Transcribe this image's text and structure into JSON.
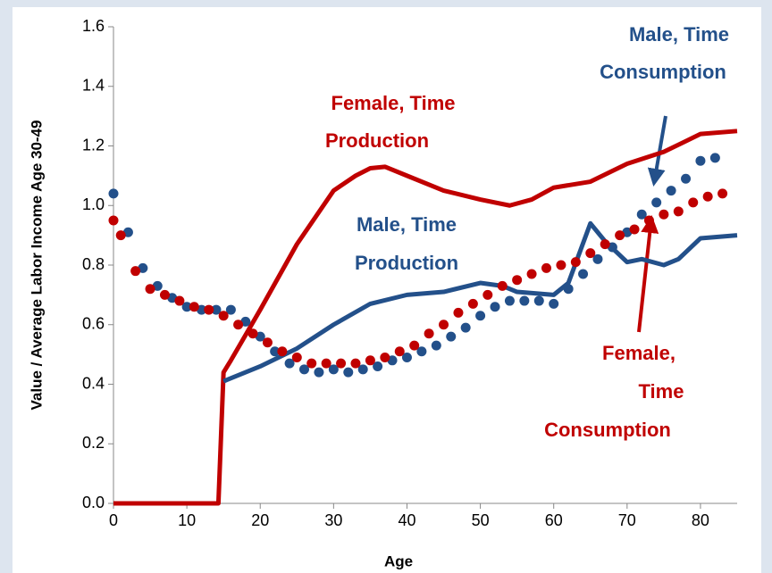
{
  "chart_data": {
    "type": "line",
    "xlabel": "Age",
    "ylabel": "Value / Average Labor Income Age 30-49",
    "xlim": [
      0,
      85
    ],
    "xticks": [
      0,
      10,
      20,
      30,
      40,
      50,
      60,
      70,
      80
    ],
    "ylim": [
      0,
      1.6
    ],
    "yticks": [
      {
        "value": 0,
        "label": "0.0"
      },
      0.2,
      0.4,
      0.6,
      0.8,
      {
        "value": 1,
        "label": "1.0"
      },
      1.2,
      1.4,
      1.6
    ],
    "series": [
      {
        "style": "line",
        "color": "#c00000",
        "x": [
          0,
          14.3,
          15,
          16,
          20,
          25,
          30,
          33,
          35,
          37,
          40,
          45,
          50,
          54,
          57,
          60,
          65,
          70,
          75,
          80,
          85
        ],
        "values": [
          0,
          0,
          0.44,
          0.48,
          0.65,
          0.87,
          1.05,
          1.1,
          1.125,
          1.13,
          1.1,
          1.05,
          1.02,
          1.0,
          1.02,
          1.06,
          1.08,
          1.14,
          1.18,
          1.24,
          1.25
        ]
      },
      {
        "style": "line",
        "color": "#23508a",
        "x": [
          15,
          20,
          25,
          30,
          35,
          40,
          45,
          50,
          53,
          55,
          60,
          62,
          65,
          67,
          70,
          72,
          75,
          77,
          80,
          85
        ],
        "values": [
          0.41,
          0.46,
          0.52,
          0.6,
          0.67,
          0.7,
          0.71,
          0.74,
          0.73,
          0.71,
          0.7,
          0.74,
          0.94,
          0.88,
          0.81,
          0.82,
          0.8,
          0.82,
          0.89,
          0.9
        ]
      },
      {
        "style": "dots",
        "color": "#23508a",
        "x": [
          0,
          2,
          4,
          6,
          8,
          10,
          12,
          14,
          16,
          18,
          20,
          22,
          24,
          26,
          28,
          30,
          32,
          34,
          36,
          38,
          40,
          42,
          44,
          46,
          48,
          50,
          52,
          54,
          56,
          58,
          60,
          62,
          64,
          66,
          68,
          70,
          72,
          74,
          76,
          78,
          80,
          82
        ],
        "values": [
          1.04,
          0.91,
          0.79,
          0.73,
          0.69,
          0.66,
          0.65,
          0.65,
          0.65,
          0.61,
          0.56,
          0.51,
          0.47,
          0.45,
          0.44,
          0.45,
          0.44,
          0.45,
          0.46,
          0.48,
          0.49,
          0.51,
          0.53,
          0.56,
          0.59,
          0.63,
          0.66,
          0.68,
          0.68,
          0.68,
          0.67,
          0.72,
          0.77,
          0.82,
          0.86,
          0.91,
          0.97,
          1.01,
          1.05,
          1.09,
          1.15,
          1.16
        ]
      },
      {
        "style": "dots",
        "color": "#c00000",
        "x": [
          0,
          1,
          3,
          5,
          7,
          9,
          11,
          13,
          15,
          17,
          19,
          21,
          23,
          25,
          27,
          29,
          31,
          33,
          35,
          37,
          39,
          41,
          43,
          45,
          47,
          49,
          51,
          53,
          55,
          57,
          59,
          61,
          63,
          65,
          67,
          69,
          71,
          73,
          75,
          77,
          79,
          81,
          83
        ],
        "values": [
          0.95,
          0.9,
          0.78,
          0.72,
          0.7,
          0.68,
          0.66,
          0.65,
          0.63,
          0.6,
          0.57,
          0.54,
          0.51,
          0.49,
          0.47,
          0.47,
          0.47,
          0.47,
          0.48,
          0.49,
          0.51,
          0.53,
          0.57,
          0.6,
          0.64,
          0.67,
          0.7,
          0.73,
          0.75,
          0.77,
          0.79,
          0.8,
          0.81,
          0.84,
          0.87,
          0.9,
          0.92,
          0.95,
          0.97,
          0.98,
          1.01,
          1.03,
          1.04
        ]
      }
    ],
    "annotations": [
      {
        "color": "#c00000",
        "lines": [
          "Female, Time",
          "Production"
        ]
      },
      {
        "color": "#23508a",
        "lines": [
          "Male, Time",
          "Production"
        ]
      },
      {
        "color": "#23508a",
        "lines": [
          "Male, Time",
          "Consumption"
        ]
      },
      {
        "color": "#c00000",
        "lines": [
          "Female,",
          "Time",
          "Consumption"
        ]
      }
    ]
  }
}
